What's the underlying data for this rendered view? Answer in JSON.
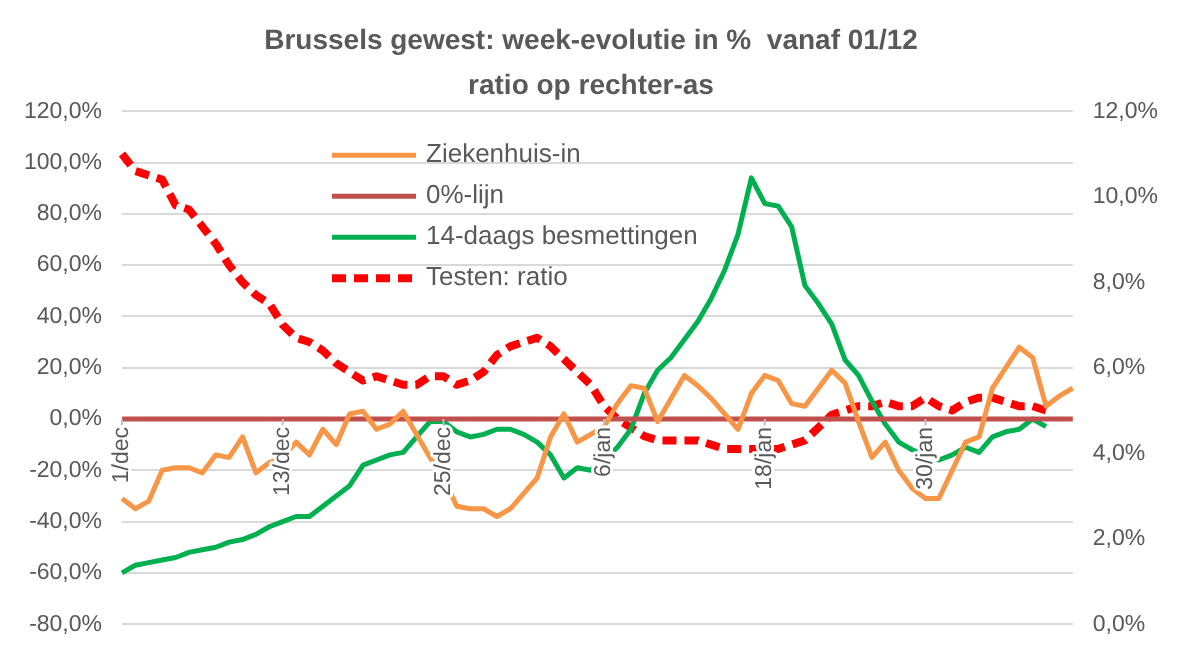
{
  "chart_data": {
    "type": "line",
    "title": "Brussels gewest: week-evolutie in %  vanaf 01/12",
    "subtitle": "ratio op rechter-as",
    "categories": [
      "1/dec",
      null,
      null,
      null,
      null,
      null,
      null,
      null,
      null,
      null,
      null,
      null,
      "13/dec",
      null,
      null,
      null,
      null,
      null,
      null,
      null,
      null,
      null,
      null,
      null,
      "25/dec",
      null,
      null,
      null,
      null,
      null,
      null,
      null,
      null,
      null,
      null,
      null,
      "6/jan",
      null,
      null,
      null,
      null,
      null,
      null,
      null,
      null,
      null,
      null,
      null,
      "18/jan",
      null,
      null,
      null,
      null,
      null,
      null,
      null,
      null,
      null,
      null,
      null,
      "30/jan",
      null,
      null,
      null,
      null,
      null,
      null,
      null,
      null,
      null,
      null,
      null
    ],
    "series": [
      {
        "name": "Ziekenhuis-in",
        "color": "#f79646",
        "values": [
          -31,
          -35,
          -32,
          -20,
          -19,
          -19,
          -21,
          -14,
          -15,
          -7,
          -21,
          -17,
          -15,
          -9,
          -14,
          -4,
          -10,
          2,
          3,
          -4,
          -2,
          3,
          -6,
          -15,
          -23,
          -34,
          -35,
          -35,
          -38,
          -35,
          -29,
          -23,
          -7,
          2,
          -9,
          -6,
          -3,
          6,
          13,
          12,
          -1,
          8,
          17,
          13,
          8,
          2,
          -4,
          10,
          17,
          15,
          6,
          5,
          12,
          19,
          14,
          -1,
          -15,
          -9,
          -20,
          -27,
          -31,
          -31,
          -20,
          -9,
          -7,
          12,
          20,
          28,
          24,
          5,
          9,
          12
        ]
      },
      {
        "name": "0%-lijn",
        "color": "#c0504d",
        "values": [
          0,
          0,
          0,
          0,
          0,
          0,
          0,
          0,
          0,
          0,
          0,
          0,
          0,
          0,
          0,
          0,
          0,
          0,
          0,
          0,
          0,
          0,
          0,
          0,
          0,
          0,
          0,
          0,
          0,
          0,
          0,
          0,
          0,
          0,
          0,
          0,
          0,
          0,
          0,
          0,
          0,
          0,
          0,
          0,
          0,
          0,
          0,
          0,
          0,
          0,
          0,
          0,
          0,
          0,
          0,
          0,
          0,
          0,
          0,
          0,
          0,
          0,
          0,
          0,
          0,
          0,
          0,
          0,
          0,
          0,
          0,
          0
        ]
      },
      {
        "name": "14-daags besmettingen",
        "color": "#00b050",
        "values": [
          -60,
          -57,
          -56,
          -55,
          -54,
          -52,
          -51,
          -50,
          -48,
          -47,
          -45,
          -42,
          -40,
          -38,
          -38,
          -34,
          -30,
          -26,
          -18,
          -16,
          -14,
          -13,
          -7,
          -1,
          -1,
          -5,
          -7,
          -6,
          -4,
          -4,
          -6,
          -9,
          -14,
          -23,
          -19,
          -20,
          -16,
          -11,
          -4,
          10,
          19,
          24,
          31,
          38,
          47,
          58,
          72,
          94,
          84,
          83,
          75,
          52,
          45,
          37,
          23,
          17,
          7,
          -2,
          -9,
          -12,
          -14,
          -16,
          -14,
          -11,
          -13,
          -7,
          -5,
          -4,
          0,
          -3,
          null,
          null
        ]
      },
      {
        "name": "Testen: ratio",
        "color": "#ff0000",
        "axis": "y2",
        "line_style": "dashed",
        "values": [
          11.0,
          10.6,
          10.5,
          10.4,
          9.8,
          9.7,
          9.3,
          8.9,
          8.4,
          8.0,
          7.7,
          7.5,
          7.0,
          6.7,
          6.6,
          6.4,
          6.1,
          5.9,
          5.7,
          5.8,
          5.7,
          5.6,
          5.6,
          5.8,
          5.8,
          5.6,
          5.7,
          5.9,
          6.3,
          6.5,
          6.6,
          6.7,
          6.5,
          6.2,
          5.9,
          5.6,
          5.1,
          4.8,
          4.6,
          4.4,
          4.3,
          4.3,
          4.3,
          4.3,
          4.2,
          4.1,
          4.1,
          4.1,
          4.1,
          4.1,
          4.2,
          4.3,
          4.6,
          4.9,
          5.0,
          5.1,
          5.1,
          5.2,
          5.1,
          5.1,
          5.3,
          5.1,
          5.0,
          5.2,
          5.3,
          5.3,
          5.2,
          5.1,
          5.1,
          5.0,
          null,
          null
        ]
      }
    ],
    "ylim": [
      -80,
      120
    ],
    "yticks": [
      {
        "value": -80,
        "label": "-80,0%"
      },
      {
        "value": -60,
        "label": "-60,0%"
      },
      {
        "value": -40,
        "label": "-40,0%"
      },
      {
        "value": -20,
        "label": "-20,0%"
      },
      {
        "value": 0,
        "label": "0,0%"
      },
      {
        "value": 20,
        "label": "20,0%"
      },
      {
        "value": 40,
        "label": "40,0%"
      },
      {
        "value": 60,
        "label": "60,0%"
      },
      {
        "value": 80,
        "label": "80,0%"
      },
      {
        "value": 100,
        "label": "100,0%"
      },
      {
        "value": 120,
        "label": "120,0%"
      }
    ],
    "y2lim": [
      0,
      12
    ],
    "y2ticks": [
      {
        "value": 0,
        "label": "0,0%"
      },
      {
        "value": 2,
        "label": "2,0%"
      },
      {
        "value": 4,
        "label": "4,0%"
      },
      {
        "value": 6,
        "label": "6,0%"
      },
      {
        "value": 8,
        "label": "8,0%"
      },
      {
        "value": 10,
        "label": "10,0%"
      },
      {
        "value": 12,
        "label": "12,0%"
      }
    ],
    "grid": "y",
    "legend": "top",
    "marker": "none",
    "line_style": "solid"
  }
}
